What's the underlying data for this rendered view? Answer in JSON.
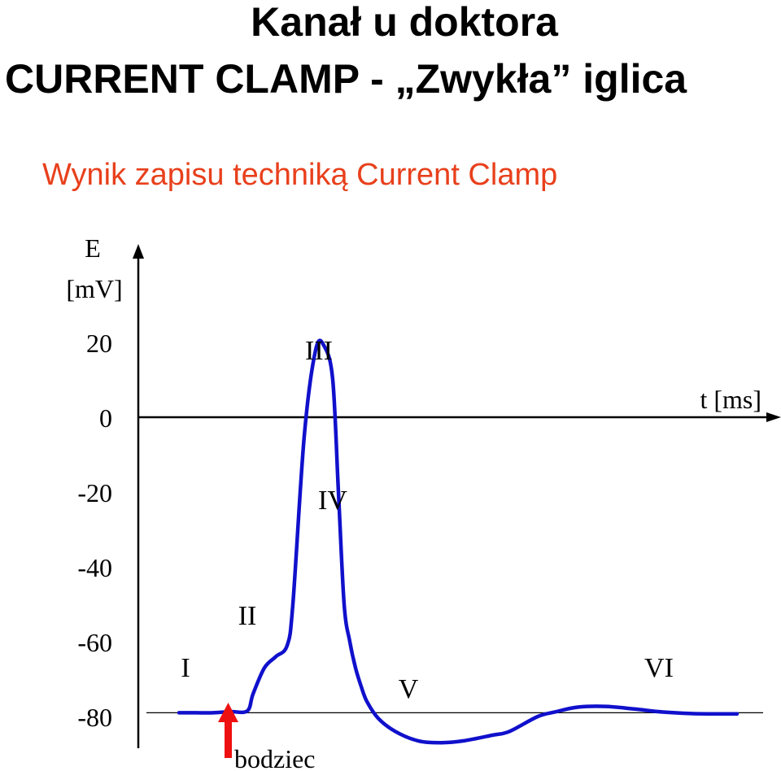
{
  "title_line1": "Kanał u doktora",
  "title_line2": "CURRENT CLAMP - „Zwykła” iglica",
  "subtitle": "Wynik zapisu techniką Current Clamp",
  "colors": {
    "subtitle": "#e8401c",
    "trace": "#1010cc",
    "stimulus_arrow": "#ee1111",
    "axis": "#000000"
  },
  "chart_data": {
    "type": "line",
    "ylabel_line1": "E",
    "ylabel_line2": "[mV]",
    "xlabel": "t [ms]",
    "yticks": [
      20,
      0,
      -20,
      -40,
      -60,
      -80
    ],
    "ytick_labels": [
      "20",
      "0",
      "-20",
      "-40",
      "-60",
      "-80"
    ],
    "ylim": [
      -90,
      45
    ],
    "xlim": [
      0,
      100
    ],
    "grid": false,
    "resting_potential": -79,
    "series": [
      {
        "x": [
          0,
          3,
          6,
          9,
          12,
          13,
          15,
          17,
          19,
          20,
          22,
          24,
          25.5,
          27,
          28,
          29,
          30,
          31,
          32,
          33,
          35,
          38,
          42,
          46,
          50,
          55,
          58,
          63,
          66,
          70,
          75,
          80,
          85,
          90,
          95,
          98
        ],
        "y": [
          -79,
          -79,
          -79,
          -78.7,
          -78.5,
          -74,
          -67,
          -64,
          -61,
          -50,
          -5,
          18,
          19,
          10,
          -20,
          -50,
          -60,
          -67,
          -72,
          -76,
          -80.5,
          -84,
          -86.5,
          -87,
          -86.5,
          -85,
          -84,
          -80,
          -78.8,
          -77.5,
          -77.3,
          -78,
          -78.8,
          -79.2,
          -79.3,
          -79.3
        ]
      }
    ],
    "phase_labels": [
      "I",
      "II",
      "III",
      "IV",
      "V",
      "VI"
    ],
    "stimulus_label": "bodziec"
  }
}
